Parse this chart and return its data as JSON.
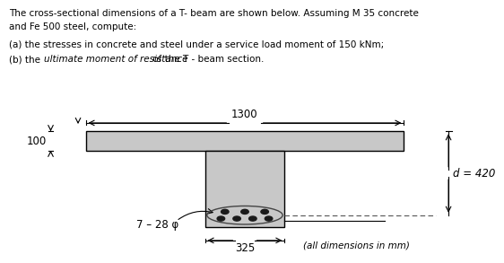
{
  "bg_color": "#ffffff",
  "text_color": "#000000",
  "beam_color": "#c8c8c8",
  "edge_color": "#000000",
  "title_line1": "The cross-sectional dimensions of a T- beam are shown below. Assuming M 35 concrete",
  "title_line2": "and Fe 500 steel, compute:",
  "body_line_a": "(a) the stresses in concrete and steel under a service load moment of 150 kNm;",
  "body_line_b_pre": "(b) the ",
  "body_line_b_italic": "ultimate moment of resistance",
  "body_line_b_post": " of the T - beam section.",
  "rebar_label": "7 – 28 φ",
  "d_label": "d = 420",
  "dim_1300": "1300",
  "dim_100": "100",
  "dim_325": "325",
  "footer": "(all dimensions in mm)"
}
